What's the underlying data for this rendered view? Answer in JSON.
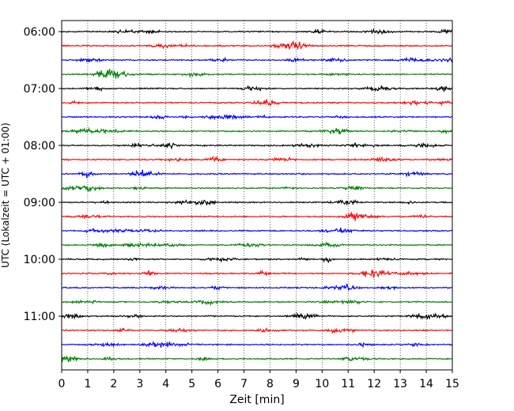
{
  "chart_data": {
    "type": "line",
    "title": "",
    "xlabel": "Zeit  [min]",
    "ylabel": "UTC (Lokalzeit = UTC + 01:00)",
    "xlim": [
      0,
      15
    ],
    "x_ticks": [
      0,
      1,
      2,
      3,
      4,
      5,
      6,
      7,
      8,
      9,
      10,
      11,
      12,
      13,
      14,
      15
    ],
    "x_tick_labels": [
      "0",
      "1",
      "2",
      "3",
      "4",
      "5",
      "6",
      "7",
      "8",
      "9",
      "10",
      "11",
      "12",
      "13",
      "14",
      "15"
    ],
    "y_ticks": [
      "06:00",
      "07:00",
      "08:00",
      "09:00",
      "10:00",
      "11:00"
    ],
    "grid": "vertical dotted",
    "trace_start_times": [
      "06:00",
      "06:15",
      "06:30",
      "06:45",
      "07:00",
      "07:15",
      "07:30",
      "07:45",
      "08:00",
      "08:15",
      "08:30",
      "08:45",
      "09:00",
      "09:15",
      "09:30",
      "09:45",
      "10:00",
      "10:15",
      "10:30",
      "10:45",
      "11:00",
      "11:15",
      "11:30",
      "11:45"
    ],
    "trace_colors": [
      "#000000",
      "#ff0000",
      "#0000ff",
      "#007f00"
    ]
  }
}
